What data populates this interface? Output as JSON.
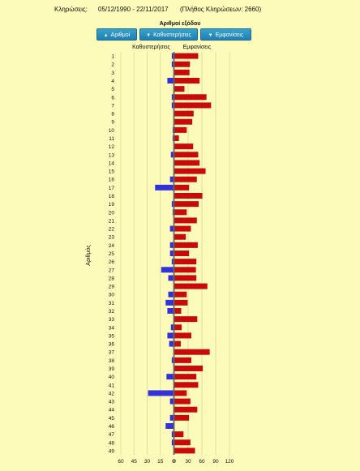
{
  "header": {
    "label": "Κληρώσεις:",
    "range": "05/12/1990 - 22/11/2017",
    "count_text": "(Πλήθος Κληρώσεων: 2660)"
  },
  "controls": {
    "title": "Αριθμοί εξόδου",
    "buttons": [
      {
        "icon": "sort-up-arrow-icon",
        "label": "Αριθμοί"
      },
      {
        "icon": "sort-down-arrow-icon",
        "label": "Καθυστερήσεις"
      },
      {
        "icon": "sort-down-arrow-icon",
        "label": "Εμφανίσεις"
      }
    ]
  },
  "colors": {
    "delays": "#3232d8",
    "appearances": "#c80a0a",
    "background": "#fdfbb9",
    "button": "#2a8fc0"
  },
  "chart_data": {
    "type": "bar",
    "orientation": "horizontal",
    "ylabel": "Αριθμός",
    "grid": true,
    "categories": [
      "1",
      "2",
      "3",
      "4",
      "5",
      "6",
      "7",
      "8",
      "9",
      "10",
      "11",
      "12",
      "13",
      "14",
      "15",
      "16",
      "17",
      "18",
      "19",
      "20",
      "21",
      "22",
      "23",
      "24",
      "25",
      "26",
      "27",
      "28",
      "29",
      "30",
      "31",
      "32",
      "33",
      "34",
      "35",
      "36",
      "37",
      "38",
      "39",
      "40",
      "41",
      "42",
      "43",
      "44",
      "45",
      "46",
      "47",
      "48",
      "49"
    ],
    "left": {
      "title": "Καθυστερήσεις",
      "ticks": [
        "60",
        "45",
        "30",
        "15",
        "0"
      ],
      "xlim": [
        0,
        60
      ],
      "values": [
        2,
        2,
        0,
        7,
        0,
        2,
        2,
        0,
        0,
        1,
        1,
        0,
        3,
        0,
        0,
        4,
        21,
        0,
        2,
        1,
        0,
        4,
        0,
        4,
        4,
        2,
        14,
        6,
        0,
        6,
        9,
        7,
        0,
        3,
        7,
        5,
        0,
        2,
        0,
        8,
        0,
        29,
        4,
        0,
        4,
        9,
        2,
        2,
        0
      ]
    },
    "right": {
      "title": "Εμφανίσεις",
      "ticks": [
        "0",
        "30",
        "60",
        "90",
        "120"
      ],
      "xlim": [
        0,
        120
      ],
      "values": [
        52,
        34,
        33,
        55,
        22,
        70,
        80,
        42,
        39,
        27,
        10,
        41,
        52,
        55,
        68,
        49,
        32,
        61,
        53,
        27,
        49,
        36,
        25,
        51,
        32,
        48,
        47,
        48,
        72,
        27,
        29,
        15,
        50,
        16,
        37,
        14,
        77,
        37,
        62,
        48,
        52,
        27,
        35,
        50,
        32,
        0,
        20,
        35,
        45
      ]
    }
  }
}
